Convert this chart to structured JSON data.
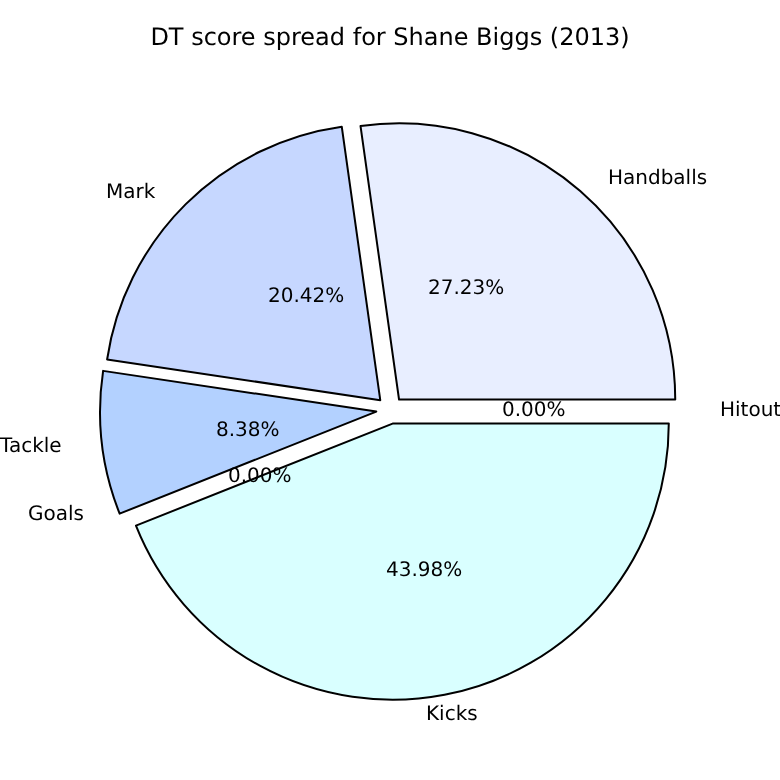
{
  "chart_data": {
    "type": "pie",
    "title": "DT score spread for Shane Biggs (2013)",
    "categories": [
      "Handballs",
      "Mark",
      "Tackle",
      "Goals",
      "Kicks",
      "Hitout"
    ],
    "values": [
      27.23,
      20.42,
      8.38,
      0.0,
      43.98,
      0.0
    ],
    "colors": [
      "#e8eeff",
      "#c6d7ff",
      "#b3d1ff",
      "#a8c8ff",
      "#d9ffff",
      "#e0e8f8"
    ],
    "value_labels": [
      "27.23%",
      "20.42%",
      "8.38%",
      "0.00%",
      "43.98%",
      "0.00%"
    ]
  }
}
